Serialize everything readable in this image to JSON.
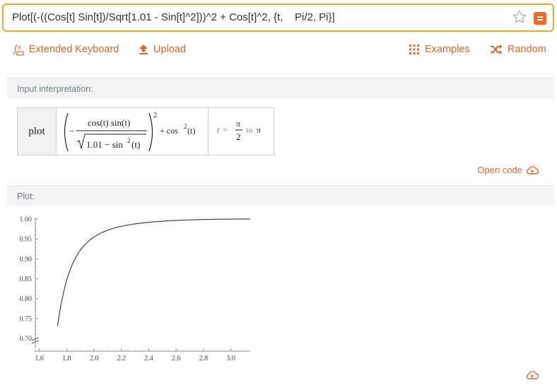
{
  "query": {
    "text": "Plot[(-((Cos[t] Sin[t])/Sqrt[1.01 - Sin[t]^2]))^2 + Cos[t]^2, {t,    Pi/2, Pi}]",
    "star_icon": "star-icon",
    "go_icon": "equals-icon"
  },
  "toolbar": {
    "extended_keyboard": "Extended Keyboard",
    "upload": "Upload",
    "examples": "Examples",
    "random": "Random"
  },
  "input_pod": {
    "title": "Input interpretation:",
    "plot_label": "plot",
    "expr": {
      "numerator": "cos(t) sin(t)",
      "denominator": "1.01 − sin",
      "denominator_tail": "(t)",
      "sq": "2",
      "minus": "−",
      "plus_cos": "+ cos",
      "cos_tail": "(t)"
    },
    "range": {
      "t_eq": "t =",
      "pi_num": "π",
      "pi_den": "2",
      "to": "to",
      "pi": "π"
    },
    "open_code": "Open code"
  },
  "plot_pod": {
    "title": "Plot:"
  },
  "colors": {
    "accent": "#e0662a",
    "curve": "#3a3a8c",
    "input_border": "#f6a623"
  },
  "chart_data": {
    "type": "line",
    "title": "",
    "xlabel": "",
    "ylabel": "",
    "xlim": [
      1.5708,
      3.1416
    ],
    "ylim": [
      0.7,
      1.0
    ],
    "x_ticks": [
      "1.6",
      "1.8",
      "2.0",
      "2.2",
      "2.4",
      "2.6",
      "2.8",
      "3.0"
    ],
    "x_tick_values": [
      1.6,
      1.8,
      2.0,
      2.2,
      2.4,
      2.6,
      2.8,
      3.0
    ],
    "y_ticks": [
      "0.70",
      "0.75",
      "0.80",
      "0.85",
      "0.90",
      "0.95",
      "1.00"
    ],
    "y_tick_values": [
      0.7,
      0.75,
      0.8,
      0.85,
      0.9,
      0.95,
      1.0
    ],
    "series": [
      {
        "function": "(-((Cos[t] Sin[t])/Sqrt[1.01 - Sin[t]^2]))^2 + Cos[t]^2",
        "x_start": 1.7335,
        "x_end": 3.1416
      }
    ]
  }
}
